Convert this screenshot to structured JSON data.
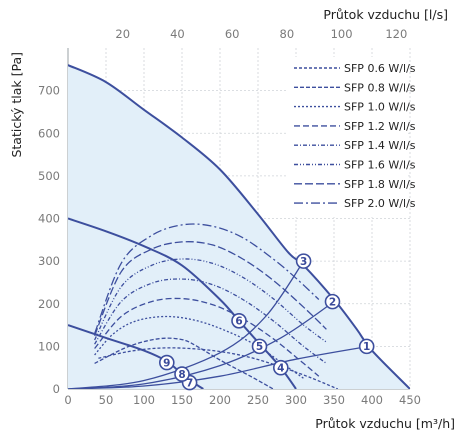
{
  "colors": {
    "curve": "#3d4f9e",
    "fill": "#e2eff9",
    "grid": "#cfd3d8",
    "tick_text": "#7a7a7a"
  },
  "chart_data": {
    "type": "line",
    "xlabel": "Průtok vzduchu [m³/h]",
    "x2label": "Průtok vzduchu [l/s]",
    "ylabel": "Statický tlak [Pa]",
    "xlim": [
      0,
      450
    ],
    "ylim": [
      0,
      800
    ],
    "x2lim": [
      0,
      125
    ],
    "x_ticks": [
      0,
      50,
      100,
      150,
      200,
      250,
      300,
      350,
      400,
      450
    ],
    "y_ticks": [
      0,
      100,
      200,
      300,
      400,
      500,
      600,
      700
    ],
    "x2_ticks": [
      20,
      40,
      60,
      80,
      100,
      120
    ],
    "grid": true,
    "legend_position": "top-right",
    "legend": [
      "SFP 0.6 W/l/s",
      "SFP 0.8 W/l/s",
      "SFP 1.0 W/l/s",
      "SFP 1.2 W/l/s",
      "SFP 1.4 W/l/s",
      "SFP 1.6 W/l/s",
      "SFP 1.8 W/l/s",
      "SFP 2.0 W/l/s"
    ],
    "fan_curves": [
      {
        "points": [
          [
            0,
            760
          ],
          [
            50,
            720
          ],
          [
            100,
            655
          ],
          [
            150,
            590
          ],
          [
            200,
            515
          ],
          [
            250,
            410
          ],
          [
            290,
            320
          ],
          [
            310,
            290
          ],
          [
            350,
            210
          ],
          [
            380,
            140
          ],
          [
            400,
            90
          ],
          [
            450,
            0
          ]
        ]
      },
      {
        "points": [
          [
            0,
            400
          ],
          [
            50,
            370
          ],
          [
            100,
            335
          ],
          [
            150,
            290
          ],
          [
            200,
            210
          ],
          [
            225,
            160
          ],
          [
            250,
            110
          ],
          [
            280,
            50
          ],
          [
            300,
            0
          ]
        ]
      },
      {
        "points": [
          [
            0,
            150
          ],
          [
            50,
            120
          ],
          [
            100,
            90
          ],
          [
            130,
            65
          ],
          [
            150,
            35
          ],
          [
            165,
            15
          ],
          [
            178,
            0
          ]
        ]
      }
    ],
    "system_curves": [
      {
        "points": [
          [
            0,
            0
          ],
          [
            100,
            20
          ],
          [
            200,
            85
          ],
          [
            260,
            170
          ],
          [
            310,
            300
          ]
        ]
      },
      {
        "points": [
          [
            0,
            0
          ],
          [
            100,
            12
          ],
          [
            200,
            55
          ],
          [
            280,
            120
          ],
          [
            350,
            205
          ]
        ]
      },
      {
        "points": [
          [
            0,
            0
          ],
          [
            100,
            7
          ],
          [
            200,
            30
          ],
          [
            300,
            70
          ],
          [
            395,
            100
          ]
        ]
      }
    ],
    "sfp_curves": [
      {
        "name": "SFP 0.6 W/l/s",
        "points": [
          [
            40,
            72
          ],
          [
            80,
            88
          ],
          [
            120,
            96
          ],
          [
            160,
            95
          ],
          [
            200,
            88
          ],
          [
            240,
            74
          ],
          [
            280,
            52
          ],
          [
            320,
            26
          ],
          [
            355,
            0
          ]
        ]
      },
      {
        "name": "SFP 0.8 W/l/s",
        "points": [
          [
            35,
            60
          ],
          [
            80,
            100
          ],
          [
            120,
            118
          ],
          [
            150,
            116
          ],
          [
            170,
            100
          ],
          [
            200,
            68
          ],
          [
            240,
            30
          ],
          [
            270,
            0
          ]
        ]
      },
      {
        "name": "SFP 1.0 W/l/s",
        "points": [
          [
            35,
            80
          ],
          [
            60,
            130
          ],
          [
            90,
            160
          ],
          [
            130,
            170
          ],
          [
            170,
            160
          ],
          [
            210,
            135
          ],
          [
            250,
            100
          ],
          [
            290,
            50
          ],
          [
            310,
            25
          ]
        ]
      },
      {
        "name": "SFP 1.2 W/l/s",
        "points": [
          [
            35,
            95
          ],
          [
            70,
            170
          ],
          [
            110,
            205
          ],
          [
            150,
            212
          ],
          [
            190,
            198
          ],
          [
            230,
            165
          ],
          [
            270,
            118
          ],
          [
            310,
            60
          ],
          [
            330,
            30
          ]
        ]
      },
      {
        "name": "SFP 1.4 W/l/s",
        "points": [
          [
            35,
            105
          ],
          [
            70,
            205
          ],
          [
            110,
            248
          ],
          [
            150,
            258
          ],
          [
            190,
            245
          ],
          [
            230,
            210
          ],
          [
            270,
            160
          ],
          [
            310,
            100
          ],
          [
            340,
            60
          ]
        ]
      },
      {
        "name": "SFP 1.6 W/l/s",
        "points": [
          [
            35,
            115
          ],
          [
            70,
            240
          ],
          [
            110,
            290
          ],
          [
            150,
            305
          ],
          [
            190,
            295
          ],
          [
            230,
            262
          ],
          [
            270,
            212
          ],
          [
            310,
            150
          ],
          [
            340,
            110
          ]
        ]
      },
      {
        "name": "SFP 1.8 W/l/s",
        "points": [
          [
            35,
            125
          ],
          [
            70,
            275
          ],
          [
            110,
            328
          ],
          [
            150,
            345
          ],
          [
            190,
            338
          ],
          [
            230,
            305
          ],
          [
            270,
            255
          ],
          [
            310,
            192
          ],
          [
            340,
            140
          ]
        ]
      },
      {
        "name": "SFP 2.0 W/l/s",
        "points": [
          [
            35,
            130
          ],
          [
            70,
            295
          ],
          [
            110,
            360
          ],
          [
            150,
            385
          ],
          [
            190,
            382
          ],
          [
            230,
            355
          ],
          [
            270,
            305
          ],
          [
            300,
            260
          ],
          [
            330,
            210
          ]
        ]
      }
    ],
    "markers": [
      {
        "label": "1",
        "x": 393,
        "y": 100
      },
      {
        "label": "2",
        "x": 348,
        "y": 205
      },
      {
        "label": "3",
        "x": 310,
        "y": 300
      },
      {
        "label": "4",
        "x": 280,
        "y": 50
      },
      {
        "label": "5",
        "x": 252,
        "y": 100
      },
      {
        "label": "6",
        "x": 225,
        "y": 160
      },
      {
        "label": "7",
        "x": 160,
        "y": 15
      },
      {
        "label": "8",
        "x": 150,
        "y": 35
      },
      {
        "label": "9",
        "x": 130,
        "y": 62
      }
    ]
  }
}
